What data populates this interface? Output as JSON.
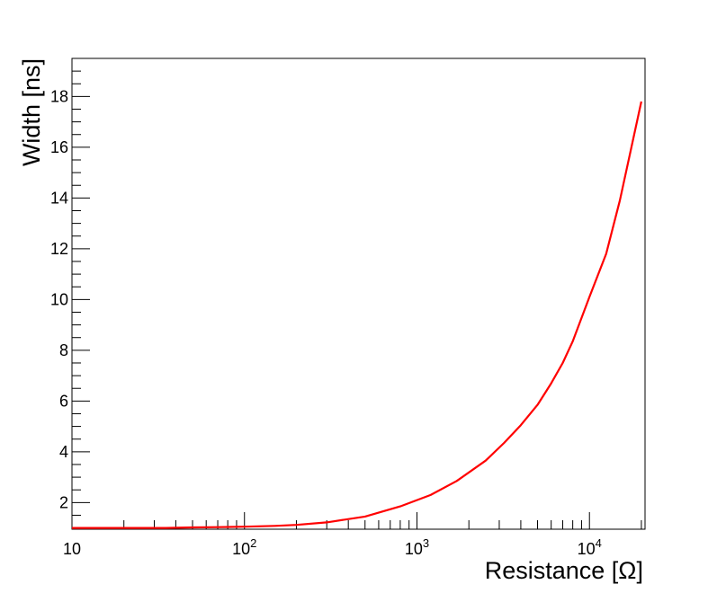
{
  "chart_data": {
    "type": "line",
    "title": "",
    "xlabel": "Resistance [Ω]",
    "ylabel": "Width [ns]",
    "xscale": "log",
    "xlim": [
      10,
      21000
    ],
    "ylim": [
      0.95,
      19.5
    ],
    "grid": false,
    "legend": "none",
    "x_ticks": [
      {
        "value": 10,
        "base": "10",
        "exp": ""
      },
      {
        "value": 100,
        "base": "10",
        "exp": "2"
      },
      {
        "value": 1000,
        "base": "10",
        "exp": "3"
      },
      {
        "value": 10000,
        "base": "10",
        "exp": "4"
      }
    ],
    "y_ticks": [
      2,
      4,
      6,
      8,
      10,
      12,
      14,
      16,
      18
    ],
    "series": [
      {
        "color": "#ff0000",
        "x": [
          10,
          20,
          35,
          50,
          70,
          100,
          150,
          200,
          300,
          500,
          800,
          1200,
          1700,
          2500,
          3200,
          4000,
          5000,
          6000,
          7000,
          8000,
          10000,
          12500,
          15000,
          20000
        ],
        "y": [
          1.0,
          1.0,
          1.0,
          1.02,
          1.03,
          1.05,
          1.08,
          1.12,
          1.22,
          1.45,
          1.85,
          2.3,
          2.85,
          3.65,
          4.35,
          5.05,
          5.85,
          6.7,
          7.5,
          8.35,
          10.1,
          11.8,
          13.9,
          17.8
        ]
      }
    ]
  }
}
